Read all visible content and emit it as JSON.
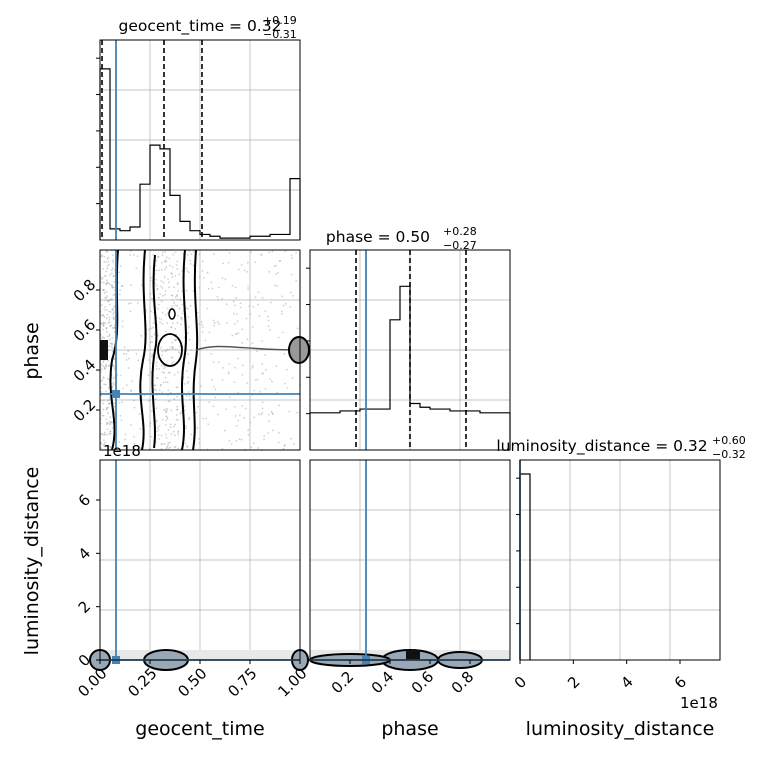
{
  "colors": {
    "truth": "#4682b4",
    "hist": "#000000",
    "grid": "#b0b0b0",
    "points": "#9a9a9a"
  },
  "chart_data": [
    {
      "type": "histogram",
      "parameter": "geocent_time",
      "title_main": "geocent_time = 0.32",
      "title_sup": "+0.19",
      "title_sub": "−0.31",
      "xlim": [
        0,
        1
      ],
      "bin_edges": [
        0,
        0.05,
        0.1,
        0.15,
        0.2,
        0.25,
        0.3,
        0.35,
        0.4,
        0.45,
        0.5,
        0.55,
        0.6,
        0.65,
        0.7,
        0.75,
        0.8,
        0.85,
        0.9,
        0.95,
        1.0
      ],
      "counts": [
        0.92,
        0.06,
        0.05,
        0.07,
        0.3,
        0.51,
        0.49,
        0.24,
        0.1,
        0.05,
        0.03,
        0.02,
        0.01,
        0.01,
        0.01,
        0.02,
        0.02,
        0.03,
        0.03,
        0.33
      ],
      "quantiles": [
        0.01,
        0.32,
        0.51
      ],
      "truth": 0.08
    },
    {
      "type": "histogram",
      "parameter": "phase",
      "title_main": "phase = 0.50",
      "title_sup": "+0.28",
      "title_sub": "−0.27",
      "xlim": [
        0,
        1
      ],
      "bin_edges": [
        0,
        0.05,
        0.1,
        0.15,
        0.2,
        0.25,
        0.3,
        0.35,
        0.4,
        0.45,
        0.5,
        0.55,
        0.6,
        0.65,
        0.7,
        0.75,
        0.8,
        0.85,
        0.9,
        0.95,
        1.0
      ],
      "counts": [
        0.2,
        0.2,
        0.2,
        0.21,
        0.21,
        0.22,
        0.22,
        0.22,
        0.7,
        0.88,
        0.25,
        0.23,
        0.22,
        0.22,
        0.21,
        0.21,
        0.21,
        0.2,
        0.2,
        0.2
      ],
      "quantiles": [
        0.23,
        0.5,
        0.78
      ],
      "truth": 0.28
    },
    {
      "type": "histogram",
      "parameter": "luminosity_distance",
      "title_main": "luminosity_distance = 0.32",
      "title_sup": "+0.60",
      "title_sub": "−0.32",
      "xlim": [
        0,
        7.5
      ],
      "x_offset_label": "1e18",
      "xticks": [
        0,
        2,
        4,
        6
      ],
      "bin_edges": [
        0,
        0.375
      ],
      "counts": [
        1.0
      ],
      "truth": 0.0
    },
    {
      "type": "scatter",
      "x_param": "geocent_time",
      "y_param": "phase",
      "xlim": [
        0,
        1
      ],
      "ylim": [
        0,
        1
      ],
      "yticks": [
        0.2,
        0.4,
        0.6,
        0.8
      ],
      "ylabel": "phase",
      "truth": {
        "x": 0.08,
        "y": 0.28
      }
    },
    {
      "type": "scatter",
      "x_param": "geocent_time",
      "y_param": "luminosity_distance",
      "xlim": [
        0,
        1
      ],
      "ylim": [
        0,
        7.5
      ],
      "xticks": [
        0.0,
        0.25,
        0.5,
        0.75,
        1.0
      ],
      "xtick_labels": [
        "0.00",
        "0.25",
        "0.50",
        "0.75",
        "1.00"
      ],
      "yticks": [
        0,
        2,
        4,
        6
      ],
      "y_offset_label": "1e18",
      "xlabel": "geocent_time",
      "ylabel": "luminosity_distance",
      "truth": {
        "x": 0.08,
        "y": 0.0
      }
    },
    {
      "type": "scatter",
      "x_param": "phase",
      "y_param": "luminosity_distance",
      "xlim": [
        0,
        1
      ],
      "ylim": [
        0,
        7.5
      ],
      "xticks": [
        0.2,
        0.4,
        0.6,
        0.8
      ],
      "xlabel": "phase",
      "truth": {
        "x": 0.28,
        "y": 0.0
      }
    }
  ],
  "axis_labels": {
    "bottom_right": "luminosity_distance",
    "bottom_right_offset": "1e18"
  }
}
